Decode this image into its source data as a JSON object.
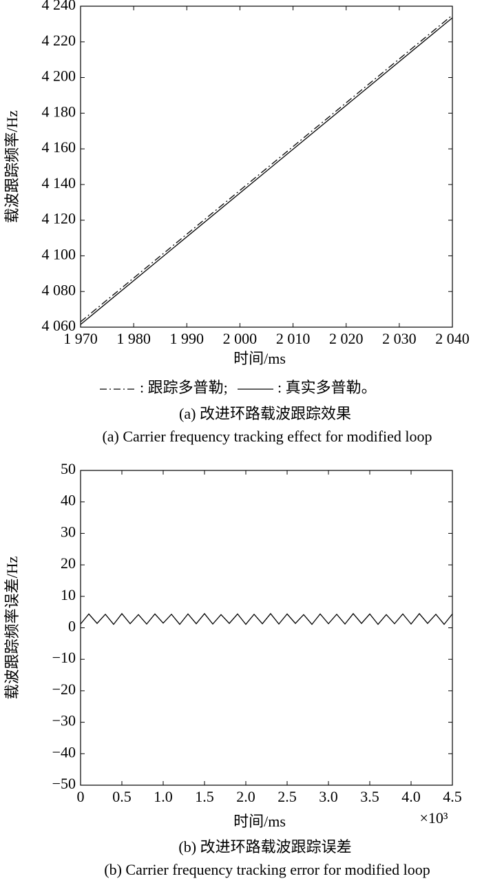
{
  "chart_data": [
    {
      "type": "line",
      "ylabel": "载波跟踪频率/Hz",
      "xlabel": "时间/ms",
      "caption_zh": "(a) 改进环路载波跟踪效果",
      "caption_en": "(a) Carrier frequency tracking effect for modified loop",
      "x": [
        1970,
        2040
      ],
      "series": [
        {
          "name": ": 跟踪多普勒;",
          "color": "#000000",
          "linestyle": "dashdot",
          "values": [
            4063,
            4235
          ]
        },
        {
          "name": ": 真实多普勒。",
          "color": "#000000",
          "linestyle": "solid",
          "values": [
            4061.5,
            4233.5
          ]
        }
      ],
      "xlim": [
        1970,
        2040
      ],
      "ylim": [
        4060,
        4240
      ],
      "xticks": [
        {
          "value": 1970,
          "label": "1 970"
        },
        {
          "value": 1980,
          "label": "1 980"
        },
        {
          "value": 1990,
          "label": "1 990"
        },
        {
          "value": 2000,
          "label": "2 000"
        },
        {
          "value": 2010,
          "label": "2 010"
        },
        {
          "value": 2020,
          "label": "2 020"
        },
        {
          "value": 2030,
          "label": "2 030"
        },
        {
          "value": 2040,
          "label": "2 040"
        }
      ],
      "yticks": [
        {
          "value": 4060,
          "label": "4 060"
        },
        {
          "value": 4080,
          "label": "4 080"
        },
        {
          "value": 4100,
          "label": "4 100"
        },
        {
          "value": 4120,
          "label": "4 120"
        },
        {
          "value": 4140,
          "label": "4 140"
        },
        {
          "value": 4160,
          "label": "4 160"
        },
        {
          "value": 4180,
          "label": "4 180"
        },
        {
          "value": 4200,
          "label": "4 200"
        },
        {
          "value": 4220,
          "label": "4 220"
        },
        {
          "value": 4240,
          "label": "4 240"
        }
      ]
    },
    {
      "type": "line",
      "ylabel": "载波跟踪频率误差/Hz",
      "xlabel": "时间/ms",
      "caption_zh": "(b) 改进环路载波跟踪误差",
      "caption_en": "(b) Carrier frequency tracking error for modified loop",
      "exponent_label": "×10³",
      "color": "#000000",
      "x": [
        0,
        0.1,
        0.2,
        0.3,
        0.4,
        0.5,
        0.6,
        0.7,
        0.8,
        0.9,
        1,
        1.1,
        1.2,
        1.3,
        1.4,
        1.5,
        1.6,
        1.7,
        1.8,
        1.9,
        2,
        2.1,
        2.2,
        2.3,
        2.4,
        2.5,
        2.6,
        2.7,
        2.8,
        2.9,
        3,
        3.1,
        3.2,
        3.3,
        3.4,
        3.5,
        3.6,
        3.7,
        3.8,
        3.9,
        4,
        4.1,
        4.2,
        4.3,
        4.4,
        4.5
      ],
      "values": [
        1.2,
        4.4,
        1.4,
        4.3,
        1.1,
        4.5,
        1.3,
        4.2,
        1.2,
        4.4,
        1.5,
        4.3,
        1.1,
        4.4,
        1.3,
        4.5,
        1.2,
        4.2,
        1.4,
        4.4,
        1.1,
        4.3,
        1.3,
        4.5,
        1.2,
        4.4,
        1.4,
        4.2,
        1.1,
        4.4,
        1.3,
        4.3,
        1.2,
        4.5,
        1.4,
        4.4,
        1.1,
        4.2,
        1.3,
        4.4,
        1.2,
        4.5,
        1.4,
        4.3,
        1.1,
        4.4
      ],
      "xlim": [
        0,
        4.5
      ],
      "ylim": [
        -50,
        50
      ],
      "xticks": [
        0,
        0.5,
        {
          "value": 1,
          "label": "1.0"
        },
        1.5,
        {
          "value": 2,
          "label": "2.0"
        },
        2.5,
        {
          "value": 3,
          "label": "3.0"
        },
        3.5,
        {
          "value": 4,
          "label": "4.0"
        },
        4.5
      ],
      "yticks": [
        {
          "value": -50,
          "label": "−50"
        },
        {
          "value": -40,
          "label": "−40"
        },
        {
          "value": -30,
          "label": "−30"
        },
        {
          "value": -20,
          "label": "−20"
        },
        {
          "value": -10,
          "label": "−10"
        },
        0,
        10,
        20,
        30,
        40,
        50
      ]
    }
  ]
}
